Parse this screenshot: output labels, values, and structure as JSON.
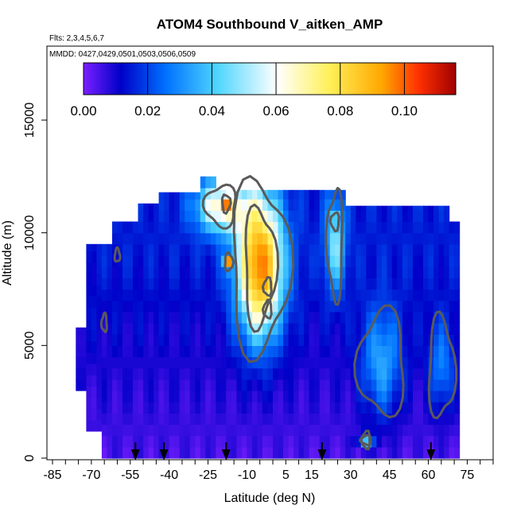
{
  "chart_data": {
    "type": "heatmap",
    "title": "ATOM4 Southbound V_aitken_AMP",
    "notes": [
      "Flts: 2,3,4,5,6,7",
      "MMDD: 0427,0429,0501,0503,0506,0509"
    ],
    "xlabel": "Latitude (deg N)",
    "ylabel": "Altitude (m)",
    "xlim": [
      -85,
      85
    ],
    "ylim": [
      0,
      18000
    ],
    "x_ticks": [
      -85,
      -70,
      -55,
      -40,
      -25,
      -10,
      5,
      15,
      30,
      45,
      60,
      75
    ],
    "y_ticks": [
      0,
      5000,
      10000,
      15000
    ],
    "colorbar": {
      "range": [
        0,
        0.116
      ],
      "ticks": [
        "0.00",
        "0.02",
        "0.04",
        "0.06",
        "0.08",
        "0.10"
      ],
      "colors": [
        "#7a1fff",
        "#0000c8",
        "#0070ff",
        "#4fd6ff",
        "#ffffff",
        "#fff05a",
        "#ffa800",
        "#ff3000",
        "#a00000"
      ],
      "position": "top"
    },
    "data_extent": {
      "lat_min": -76,
      "lat_max": 72,
      "alt_min": 0,
      "alt_max": 12500
    },
    "hotspots": [
      {
        "lat": -18,
        "alt": 11300,
        "value": 0.115
      },
      {
        "lat": -17,
        "alt": 8700,
        "value": 0.09
      },
      {
        "lat": -2,
        "alt": 7600,
        "value": 0.08
      },
      {
        "lat": -2,
        "alt": 6600,
        "value": 0.075
      },
      {
        "lat": 24,
        "alt": 10500,
        "value": 0.07
      },
      {
        "lat": 36,
        "alt": 800,
        "value": 0.05
      }
    ],
    "flight_markers_lat": [
      -53,
      -42,
      -18,
      19,
      61
    ],
    "grid": false,
    "legend": "none"
  }
}
